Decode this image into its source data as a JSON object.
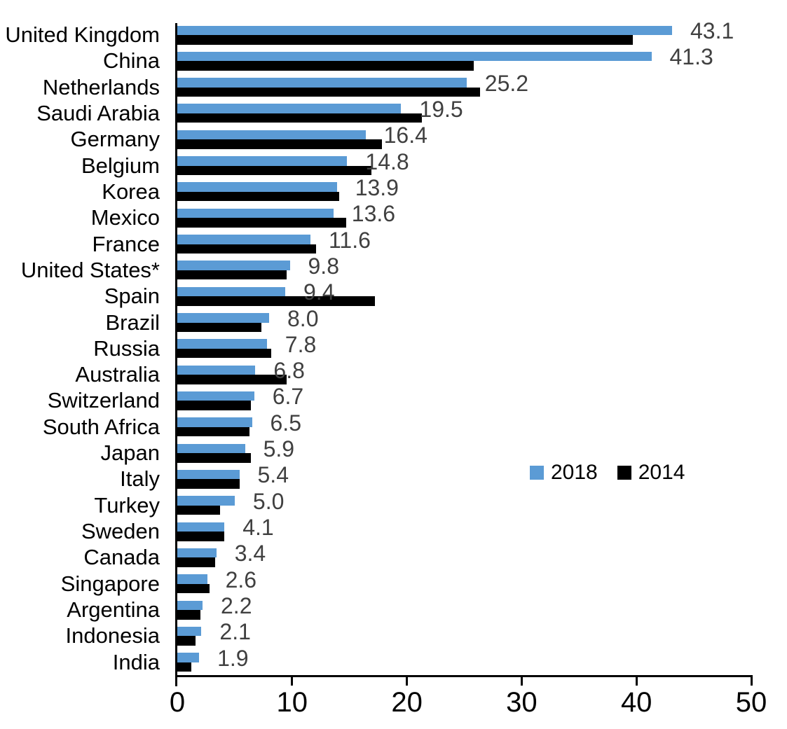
{
  "chart_data": {
    "type": "bar",
    "orientation": "horizontal",
    "title": "",
    "xlabel": "",
    "ylabel": "",
    "xlim": [
      0,
      50
    ],
    "x_ticks": [
      0,
      10,
      20,
      30,
      40,
      50
    ],
    "grid": false,
    "legend_position": "middle-right",
    "categories": [
      "United Kingdom",
      "China",
      "Netherlands",
      "Saudi Arabia",
      "Germany",
      "Belgium",
      "Korea",
      "Mexico",
      "France",
      "United States*",
      "Spain",
      "Brazil",
      "Russia",
      "Australia",
      "Switzerland",
      "South Africa",
      "Japan",
      "Italy",
      "Turkey",
      "Sweden",
      "Canada",
      "Singapore",
      "Argentina",
      "Indonesia",
      "India"
    ],
    "series": [
      {
        "name": "2018",
        "color": "#5B9BD5",
        "values": [
          43.1,
          41.3,
          25.2,
          19.5,
          16.4,
          14.8,
          13.9,
          13.6,
          11.6,
          9.8,
          9.4,
          8.0,
          7.8,
          6.8,
          6.7,
          6.5,
          5.9,
          5.4,
          5.0,
          4.1,
          3.4,
          2.6,
          2.2,
          2.1,
          1.9
        ]
      },
      {
        "name": "2014",
        "color": "#000000",
        "values": [
          39.7,
          25.8,
          26.4,
          21.3,
          17.8,
          16.9,
          14.1,
          14.7,
          12.1,
          9.5,
          17.2,
          7.3,
          8.2,
          9.5,
          6.4,
          6.3,
          6.4,
          5.4,
          3.7,
          4.1,
          3.3,
          2.8,
          2.0,
          1.6,
          1.2
        ]
      }
    ],
    "data_labels": {
      "series": "2018",
      "values": [
        "43.1",
        "41.3",
        "25.2",
        "19.5",
        "16.4",
        "14.8",
        "13.9",
        "13.6",
        "11.6",
        "9.8",
        "9.4",
        "8.0",
        "7.8",
        "6.8",
        "6.7",
        "6.5",
        "5.9",
        "5.4",
        "5.0",
        "4.1",
        "3.4",
        "2.6",
        "2.2",
        "2.1",
        "1.9"
      ],
      "color": "#404040"
    }
  },
  "colors": {
    "axis": "#000000",
    "category_text": "#000000",
    "tick_text": "#000000",
    "background": "#ffffff"
  }
}
